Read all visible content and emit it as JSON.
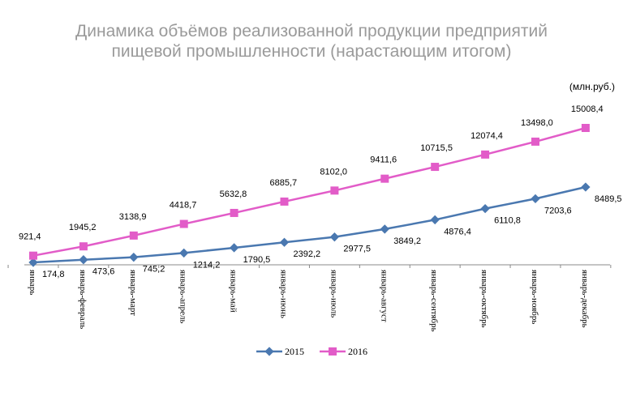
{
  "header": {
    "title_line1": "Динамика объёмов реализованной продукции предприятий",
    "title_line2": "пищевой промышленности (нарастающим итогом)",
    "unit": "(млн.руб.)"
  },
  "colors": {
    "series_2015": "#4a78b0",
    "series_2016": "#e25cc8",
    "axis": "#888888"
  },
  "chart_data": {
    "type": "line",
    "title": "Динамика объёмов реализованной продукции предприятий пищевой промышленности (нарастающим итогом)",
    "unit": "(млн.руб.)",
    "categories": [
      "январь",
      "январь-февраль",
      "январь-март",
      "январь-апрель",
      "январь-май",
      "январь-июнь",
      "январь-июль",
      "январь-август",
      "январь-сентябрь",
      "январь-октябрь",
      "январь-ноябрь",
      "январь-декабрь"
    ],
    "series": [
      {
        "name": "2015",
        "values": [
          174.8,
          473.6,
          745.2,
          1214.2,
          1790.5,
          2392.2,
          2977.5,
          3849.2,
          4876.4,
          6110.8,
          7203.6,
          8489.5
        ],
        "labels": [
          "174,8",
          "473,6",
          "745,2",
          "1214,2",
          "1790,5",
          "2392,2",
          "2977,5",
          "3849,2",
          "4876,4",
          "6110,8",
          "7203,6",
          "8489,5"
        ]
      },
      {
        "name": "2016",
        "values": [
          921.4,
          1945.2,
          3138.9,
          4418.7,
          5632.8,
          6885.7,
          8102.0,
          9411.6,
          10715.5,
          12074.4,
          13498.0,
          15008.4
        ],
        "labels": [
          "921,4",
          "1945,2",
          "3138,9",
          "4418,7",
          "5632,8",
          "6885,7",
          "8102,0",
          "9411,6",
          "10715,5",
          "12074,4",
          "13498,0",
          "15008,4"
        ]
      }
    ],
    "legend_position": "bottom",
    "grid": false
  }
}
